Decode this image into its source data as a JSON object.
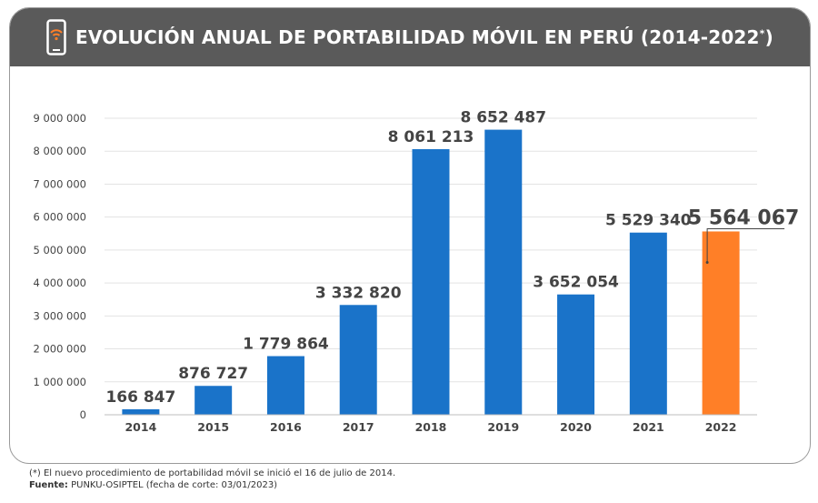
{
  "header": {
    "title": "EVOLUCIÓN ANUAL DE PORTABILIDAD MÓVIL EN PERÚ (2014-2022",
    "title_superscript": "*",
    "title_end": ")",
    "icon": "smartphone-wifi-icon"
  },
  "chart_data": {
    "type": "bar",
    "categories": [
      "2014",
      "2015",
      "2016",
      "2017",
      "2018",
      "2019",
      "2020",
      "2021",
      "2022"
    ],
    "values": [
      166847,
      876727,
      1779864,
      3332820,
      8061213,
      8652487,
      3652054,
      5529340,
      5564067
    ],
    "value_labels": [
      "166 847",
      "876 727",
      "1 779 864",
      "3 332 820",
      "8 061 213",
      "8 652 487",
      "3 652 054",
      "5 529 340",
      "5 564 067"
    ],
    "ylim": [
      0,
      9000000
    ],
    "yticks": [
      0,
      1000000,
      2000000,
      3000000,
      4000000,
      5000000,
      6000000,
      7000000,
      8000000,
      9000000
    ],
    "ytick_labels": [
      "0",
      "1 000 000",
      "2 000 000",
      "3 000 000",
      "4 000 000",
      "5 000 000",
      "6 000 000",
      "7 000 000",
      "8 000 000",
      "9 000 000"
    ],
    "grid": true,
    "colors": {
      "default": "#1a73c9",
      "highlight": "#ff7f27"
    },
    "highlight_index": 8
  },
  "footnotes": {
    "note": "(*) El nuevo procedimiento de portabilidad móvil se inició el 16 de julio de 2014.",
    "source_label": "Fuente:",
    "source_text": " PUNKU-OSIPTEL (fecha de corte: 03/01/2023)"
  }
}
